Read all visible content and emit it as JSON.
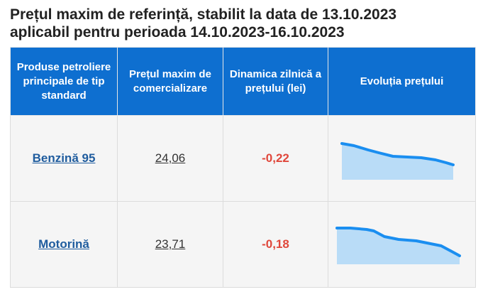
{
  "title": {
    "line1": "Prețul maxim de referință, stabilit la data de 13.10.2023",
    "line2": "aplicabil pentru perioada 14.10.2023-16.10.2023"
  },
  "table": {
    "headers": [
      "Produse petroliere principale de tip standard",
      "Prețul maxim de comercializare",
      "Dinamica zilnică a prețului (lei)",
      "Evoluția prețului"
    ],
    "rows": [
      {
        "product": "Benzină 95",
        "price": "24,06",
        "change": "-0,22"
      },
      {
        "product": "Motorină",
        "price": "23,71",
        "change": "-0,18"
      }
    ]
  },
  "colors": {
    "header_bg": "#0e6fd0",
    "accent_line": "#1a8ef0",
    "area_fill": "#b9dcf7",
    "negative": "#e0473b",
    "link": "#1f5c9e"
  }
}
